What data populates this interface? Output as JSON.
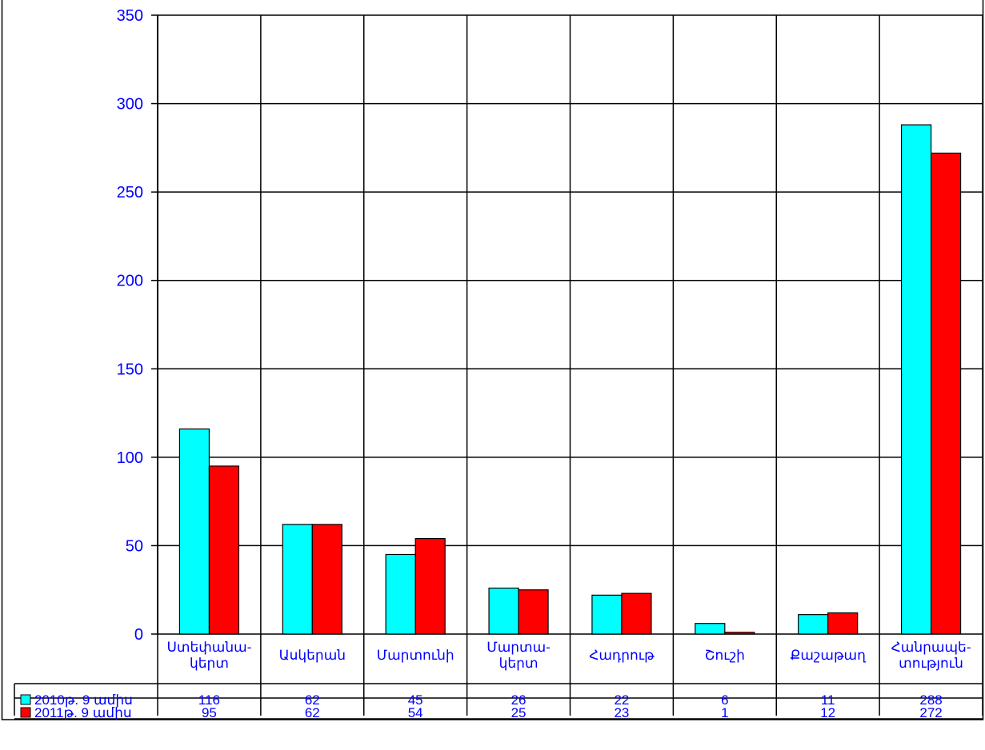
{
  "chart_data": {
    "type": "bar",
    "title": "",
    "xlabel": "",
    "ylabel": "",
    "ylim": [
      0,
      350
    ],
    "yticks": [
      "0",
      "50",
      "100",
      "150",
      "200",
      "250",
      "300",
      "350"
    ],
    "grid": true,
    "categories": [
      [
        "Ստեփանա-",
        "կերտ"
      ],
      [
        "Ասկերան"
      ],
      [
        "Մարտունի"
      ],
      [
        "Մարտա-",
        "կերտ"
      ],
      [
        "Հադրութ"
      ],
      [
        "Շուշի"
      ],
      [
        "Քաշաթաղ"
      ],
      [
        "Հանրապե-",
        "տություն"
      ]
    ],
    "series": [
      {
        "name": "2010թ. 9 ամիս",
        "color": "#00ffff",
        "values": [
          116,
          62,
          45,
          26,
          22,
          6,
          11,
          288
        ]
      },
      {
        "name": "2011թ. 9 ամիս",
        "color": "#ff0000",
        "values": [
          95,
          62,
          54,
          25,
          23,
          1,
          12,
          272
        ]
      }
    ],
    "legend": "data-table-left"
  }
}
